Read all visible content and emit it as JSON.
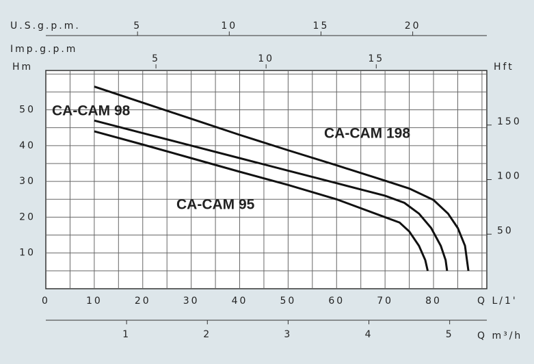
{
  "chart_data": {
    "type": "line",
    "x_label": "Q L/1'",
    "y_label": "Hm",
    "y2_label": "Hft",
    "xlim": [
      0,
      91
    ],
    "xticks": [
      0,
      10,
      20,
      30,
      40,
      50,
      60,
      70,
      80
    ],
    "ylim": [
      0,
      61
    ],
    "yticks": [
      10,
      20,
      30,
      40,
      50
    ],
    "y2lim": [
      0,
      200
    ],
    "y2ticks": [
      50,
      100,
      150
    ],
    "grid": true,
    "grid_xticks": [
      5,
      10,
      15,
      20,
      25,
      30,
      35,
      40,
      45,
      50,
      55,
      60,
      65,
      70,
      75,
      80,
      85,
      90
    ],
    "grid_yticks": [
      5,
      10,
      15,
      20,
      25,
      30,
      35,
      40,
      45,
      50,
      55,
      60
    ],
    "top_axes": [
      {
        "label": "U.S.g.p.m.",
        "lim": [
          0,
          24.04
        ],
        "ticks": [
          5,
          10,
          15,
          20
        ]
      },
      {
        "label": "Imp.g.p.m",
        "lim": [
          0,
          20.02
        ],
        "ticks": [
          5,
          10,
          15
        ]
      }
    ],
    "bottom_axis2": {
      "label": "Q m³/h",
      "lim": [
        0,
        5.46
      ],
      "ticks": [
        1,
        2,
        3,
        4,
        5
      ]
    },
    "series": [
      {
        "name": "CA-CAM 98",
        "color": "#111111",
        "x": [
          10,
          20,
          30,
          40,
          50,
          60,
          70,
          74,
          77,
          79.5,
          81.5,
          82.5,
          82.8
        ],
        "values": [
          47,
          43.5,
          40,
          36.5,
          33,
          29.5,
          26,
          24,
          21,
          17,
          12,
          8,
          5
        ]
      },
      {
        "name": "CA-CAM 198",
        "color": "#111111",
        "x": [
          10,
          20,
          30,
          40,
          50,
          60,
          70,
          75,
          80,
          83,
          85,
          86.5,
          87.2
        ],
        "values": [
          56.5,
          52,
          47.5,
          43,
          38.7,
          34.5,
          30.2,
          28,
          24.8,
          21,
          17,
          12,
          5
        ]
      },
      {
        "name": "CA-CAM 95",
        "color": "#111111",
        "x": [
          10,
          20,
          30,
          40,
          50,
          60,
          70,
          73,
          75,
          77,
          78.3,
          78.8
        ],
        "values": [
          44,
          40.3,
          36.5,
          32.7,
          29,
          25,
          20,
          18.5,
          16,
          12,
          8,
          5
        ]
      }
    ]
  }
}
